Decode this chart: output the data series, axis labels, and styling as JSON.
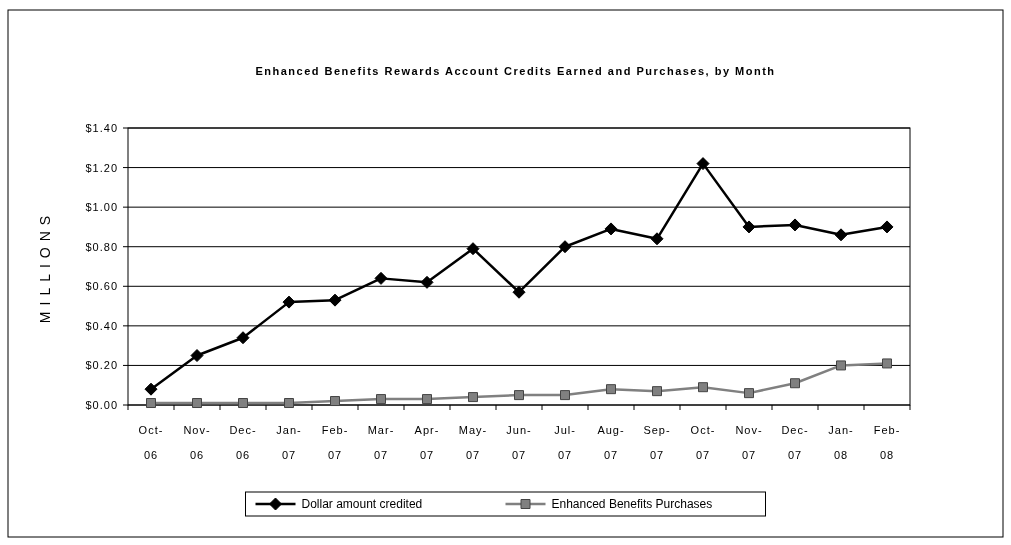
{
  "chart_data": {
    "type": "line",
    "title": "Enhanced Benefits Rewards Account Credits Earned and Purchases, by Month",
    "ylabel": "MILLIONS",
    "categories": [
      "Oct-06",
      "Nov-06",
      "Dec-06",
      "Jan-07",
      "Feb-07",
      "Mar-07",
      "Apr-07",
      "May-07",
      "Jun-07",
      "Jul-07",
      "Aug-07",
      "Sep-07",
      "Oct-07",
      "Nov-07",
      "Dec-07",
      "Jan-08",
      "Feb-08"
    ],
    "series": [
      {
        "name": "Dollar amount credited",
        "color": "#000000",
        "marker": "diamond",
        "values": [
          0.08,
          0.25,
          0.34,
          0.52,
          0.53,
          0.64,
          0.62,
          0.79,
          0.57,
          0.8,
          0.89,
          0.84,
          1.22,
          0.9,
          0.91,
          0.86,
          0.9
        ]
      },
      {
        "name": "Enhanced Benefits Purchases",
        "color": "#808080",
        "marker": "square",
        "values": [
          0.01,
          0.01,
          0.01,
          0.01,
          0.02,
          0.03,
          0.03,
          0.04,
          0.05,
          0.05,
          0.08,
          0.07,
          0.09,
          0.06,
          0.11,
          0.2,
          0.21
        ]
      }
    ],
    "ylim": [
      0,
      1.4
    ],
    "yticks": [
      {
        "value": 0,
        "label": "$0.00"
      },
      {
        "value": 0.2,
        "label": "$0.20"
      },
      {
        "value": 0.4,
        "label": "$0.40"
      },
      {
        "value": 0.6,
        "label": "$0.60"
      },
      {
        "value": 0.8,
        "label": "$0.80"
      },
      {
        "value": 1.0,
        "label": "$1.00"
      },
      {
        "value": 1.2,
        "label": "$1.20"
      },
      {
        "value": 1.4,
        "label": "$1.40"
      }
    ],
    "grid": "y",
    "legend": "bottom",
    "line_style": "solid"
  }
}
